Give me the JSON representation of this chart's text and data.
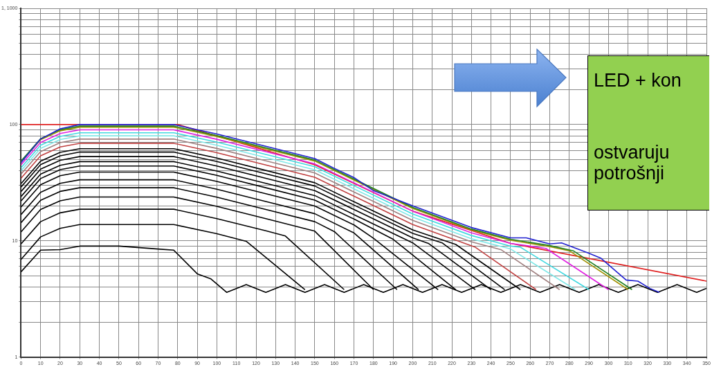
{
  "chart_data": {
    "type": "line",
    "log": "y",
    "grid": true,
    "marker": "none",
    "line_style": "solid",
    "xlim": [
      0,
      350
    ],
    "xticks": [
      0,
      10,
      20,
      30,
      40,
      50,
      60,
      70,
      80,
      90,
      100,
      110,
      120,
      130,
      140,
      150,
      160,
      170,
      180,
      190,
      200,
      210,
      220,
      230,
      240,
      250,
      260,
      270,
      280,
      290,
      300,
      310,
      320,
      330,
      340,
      350
    ],
    "ylim": [
      1,
      1000
    ],
    "yticks": [
      1,
      {
        "value": 2,
        "label": null
      },
      {
        "value": 3,
        "label": null
      },
      {
        "value": 4,
        "label": null
      },
      {
        "value": 5,
        "label": null
      },
      {
        "value": 6,
        "label": null
      },
      {
        "value": 7,
        "label": null
      },
      {
        "value": 8,
        "label": null
      },
      {
        "value": 9,
        "label": null
      },
      10,
      {
        "value": 20,
        "label": null
      },
      {
        "value": 30,
        "label": null
      },
      {
        "value": 40,
        "label": null
      },
      {
        "value": 50,
        "label": null
      },
      {
        "value": 60,
        "label": null
      },
      {
        "value": 70,
        "label": null
      },
      {
        "value": 80,
        "label": null
      },
      {
        "value": 90,
        "label": null
      },
      100,
      {
        "value": 200,
        "label": null
      },
      {
        "value": 300,
        "label": null
      },
      {
        "value": 400,
        "label": null
      },
      {
        "value": 500,
        "label": null
      },
      {
        "value": 600,
        "label": null
      },
      {
        "value": 700,
        "label": null
      },
      {
        "value": 800,
        "label": null
      },
      {
        "value": 900,
        "label": null
      },
      {
        "value": 1000,
        "label": "1, 1000"
      }
    ],
    "annotations": [
      "LED + kon",
      "ostvaruju",
      "potrošnji"
    ],
    "series": [
      {
        "color": "#2020d0",
        "x": [
          0,
          10,
          20,
          30,
          78,
          100,
          125,
          150,
          160,
          170,
          180,
          200,
          230,
          250,
          258,
          270,
          276,
          290,
          296,
          301,
          309,
          315,
          321,
          326
        ],
        "values": [
          47,
          75,
          92,
          100,
          100,
          83,
          65,
          51,
          42,
          35,
          27,
          20,
          13,
          10.6,
          10.6,
          9.4,
          9.6,
          7.8,
          7.1,
          6,
          4.6,
          4.5,
          3.9,
          3.6
        ]
      },
      {
        "color": "#208020",
        "x": [
          0,
          10,
          20,
          30,
          78,
          100,
          125,
          150,
          170,
          200,
          230,
          250,
          270,
          282,
          312
        ],
        "values": [
          48.5,
          75.7,
          90.2,
          97,
          97,
          80.5,
          63,
          49.5,
          34,
          19.4,
          12.6,
          10.3,
          9.1,
          8.2,
          3.8
        ]
      },
      {
        "color": "#a09000",
        "x": [
          0,
          10,
          20,
          30,
          78,
          100,
          125,
          150,
          170,
          200,
          230,
          250,
          270,
          280,
          310
        ],
        "values": [
          47.5,
          74.1,
          88.4,
          95,
          95,
          78.9,
          61.8,
          48.5,
          33.3,
          19,
          12.4,
          10.1,
          8.9,
          8.2,
          3.8
        ]
      },
      {
        "color": "#e020e0",
        "x": [
          0,
          10,
          20,
          30,
          78,
          100,
          125,
          150,
          170,
          200,
          230,
          250,
          268,
          300
        ],
        "values": [
          45,
          70.2,
          83.7,
          90,
          90,
          74.7,
          58.5,
          45.9,
          31.5,
          18,
          11.7,
          9.5,
          8.6,
          3.8
        ]
      },
      {
        "color": "#40d8e0",
        "x": [
          0,
          10,
          20,
          30,
          78,
          100,
          125,
          150,
          170,
          200,
          230,
          250,
          255,
          290
        ],
        "values": [
          42.5,
          66.3,
          79,
          85,
          85,
          70.6,
          55.3,
          43.4,
          29.8,
          17,
          11.1,
          9,
          8.8,
          3.8
        ]
      },
      {
        "color": "#80e8e8",
        "x": [
          0,
          10,
          20,
          30,
          78,
          100,
          125,
          150,
          170,
          200,
          230,
          250,
          283
        ],
        "values": [
          40,
          62.4,
          74.4,
          80,
          80,
          66.4,
          52,
          40.8,
          28,
          16,
          10.4,
          8.5,
          3.8
        ]
      },
      {
        "color": "#a08080",
        "x": [
          0,
          10,
          20,
          30,
          78,
          100,
          125,
          150,
          170,
          200,
          230,
          245,
          275
        ],
        "values": [
          37.5,
          58.5,
          69.8,
          75,
          75,
          62.3,
          48.8,
          38.3,
          26.3,
          15,
          9.8,
          8.4,
          3.8
        ]
      },
      {
        "color": "#c04040",
        "x": [
          0,
          10,
          20,
          30,
          78,
          100,
          125,
          150,
          170,
          200,
          232,
          263
        ],
        "values": [
          34.5,
          53.8,
          64.2,
          69,
          69,
          57.3,
          44.9,
          35.2,
          24.2,
          13.8,
          8.8,
          3.8
        ]
      },
      {
        "color": "#000000",
        "x": [
          0,
          10,
          20,
          30,
          78,
          100,
          125,
          150,
          170,
          200,
          222,
          255
        ],
        "values": [
          31,
          48.4,
          57.7,
          62,
          62,
          51.5,
          40.3,
          31.6,
          21.7,
          12.4,
          9.3,
          3.8
        ]
      },
      {
        "color": "#000000",
        "x": [
          0,
          10,
          20,
          30,
          78,
          100,
          125,
          150,
          170,
          200,
          215,
          247
        ],
        "values": [
          29,
          45.2,
          53.9,
          58,
          58,
          48.1,
          37.7,
          29.6,
          20.3,
          11.6,
          9.6,
          3.8
        ]
      },
      {
        "color": "#000000",
        "x": [
          0,
          10,
          20,
          30,
          78,
          100,
          125,
          150,
          170,
          200,
          208,
          240
        ],
        "values": [
          26.5,
          41.3,
          49.3,
          53,
          53,
          44,
          34.5,
          27,
          18.6,
          10.6,
          9.5,
          3.8
        ]
      },
      {
        "color": "#000000",
        "x": [
          0,
          10,
          20,
          30,
          78,
          100,
          125,
          150,
          170,
          200,
          232
        ],
        "values": [
          24,
          37.4,
          44.6,
          48,
          48,
          39.8,
          31.2,
          24.5,
          16.8,
          9.6,
          3.8
        ]
      },
      {
        "color": "#000000",
        "x": [
          0,
          10,
          20,
          30,
          78,
          100,
          125,
          150,
          170,
          190,
          222
        ],
        "values": [
          22,
          34.3,
          40.9,
          44,
          44,
          36.5,
          28.6,
          22.4,
          15.4,
          10.3,
          3.8
        ]
      },
      {
        "color": "#000000",
        "x": [
          0,
          10,
          20,
          30,
          78,
          100,
          125,
          150,
          170,
          180,
          213
        ],
        "values": [
          19.5,
          30.4,
          36.3,
          39,
          39,
          32.4,
          25.4,
          19.9,
          13.7,
          10.5,
          3.8
        ]
      },
      {
        "color": "#000000",
        "x": [
          0,
          10,
          20,
          30,
          78,
          100,
          125,
          150,
          170,
          203
        ],
        "values": [
          16.8,
          26.1,
          31.2,
          33.5,
          33.5,
          27.8,
          21.8,
          17.1,
          11.7,
          3.8
        ]
      },
      {
        "color": "#000000",
        "x": [
          0,
          10,
          20,
          30,
          78,
          100,
          125,
          150,
          160,
          192
        ],
        "values": [
          14.3,
          22.3,
          26.6,
          28.6,
          28.6,
          23.7,
          18.6,
          14.6,
          12,
          3.8
        ]
      },
      {
        "color": "#000000",
        "x": [
          0,
          10,
          20,
          30,
          78,
          100,
          125,
          150,
          180
        ],
        "values": [
          11.9,
          18.6,
          22.1,
          23.8,
          23.8,
          19.8,
          15.5,
          12.1,
          3.8
        ]
      },
      {
        "color": "#000000",
        "x": [
          0,
          10,
          20,
          30,
          78,
          100,
          125,
          135,
          165
        ],
        "values": [
          9.4,
          14.6,
          17.4,
          18.7,
          18.7,
          15.5,
          12.2,
          11,
          3.8
        ]
      },
      {
        "color": "#000000",
        "x": [
          0,
          10,
          20,
          30,
          78,
          100,
          115,
          145
        ],
        "values": [
          6.9,
          10.8,
          12.8,
          13.8,
          13.8,
          11.5,
          9.9,
          3.8
        ]
      },
      {
        "color": "#000000",
        "x": [
          0,
          10,
          20,
          30,
          50,
          70,
          78,
          90,
          97,
          105,
          115,
          125,
          135,
          145,
          155,
          165,
          175,
          185,
          195,
          205,
          215,
          225,
          235,
          245,
          255,
          265,
          275,
          285,
          295,
          305,
          315,
          325,
          335,
          345,
          350
        ],
        "values": [
          5.4,
          8.3,
          8.4,
          9,
          9,
          8.5,
          8.3,
          5.2,
          4.7,
          3.6,
          4.2,
          3.6,
          4.2,
          3.6,
          4.2,
          3.6,
          4.2,
          3.6,
          4.2,
          3.6,
          4.2,
          3.6,
          4.2,
          3.6,
          4.2,
          3.6,
          4.2,
          3.6,
          4.2,
          3.6,
          4.2,
          3.6,
          4.2,
          3.6,
          3.9
        ]
      },
      {
        "color": "#e02020",
        "x": [
          0,
          80,
          150,
          200,
          250,
          350
        ],
        "values": [
          100,
          100,
          45,
          18,
          9.5,
          4.5
        ]
      }
    ]
  }
}
